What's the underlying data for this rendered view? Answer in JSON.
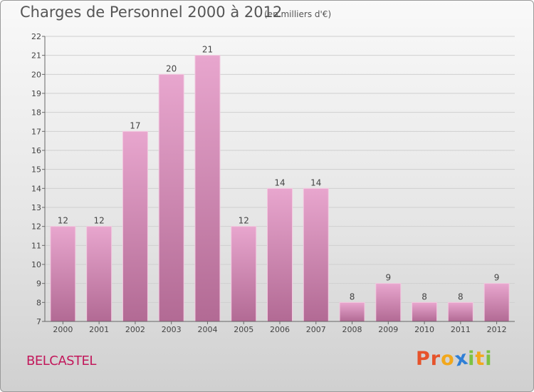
{
  "header": {
    "title": "Charges de Personnel 2000 à 2012",
    "subtitle": "(en milliers d'€)"
  },
  "footer": {
    "commune": "BELCASTEL",
    "logo": [
      "P",
      "r",
      "o",
      "x",
      "i",
      "t",
      "i"
    ],
    "logo_colors": [
      "#e6532b",
      "#e6532b",
      "#f2a81d",
      "#2f7fd6",
      "#7cc243",
      "#f2a81d",
      "#7cc243"
    ]
  },
  "colors": {
    "bar_top": "#e8a6ce",
    "bar_bottom": "#b26a94",
    "bar_highlight": "#f3c9e0",
    "grid": "#cfcfcf",
    "axis": "#666666"
  },
  "chart_data": {
    "type": "bar",
    "categories": [
      "2000",
      "2001",
      "2002",
      "2003",
      "2004",
      "2005",
      "2006",
      "2007",
      "2008",
      "2009",
      "2010",
      "2011",
      "2012"
    ],
    "values": [
      12,
      12,
      17,
      20,
      21,
      12,
      14,
      14,
      8,
      9,
      8,
      8,
      9
    ],
    "ylim": [
      7,
      22
    ],
    "yticks": [
      7,
      8,
      9,
      10,
      11,
      12,
      13,
      14,
      15,
      16,
      17,
      18,
      19,
      20,
      21,
      22
    ],
    "grid": true
  }
}
